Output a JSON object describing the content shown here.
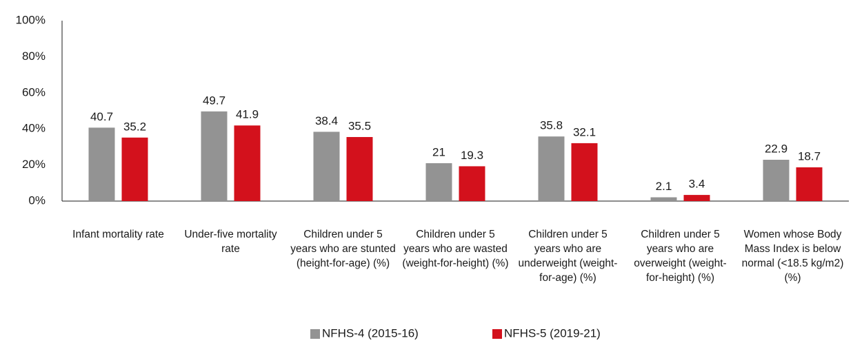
{
  "chart_data": {
    "type": "bar",
    "categories": [
      "Infant mortality rate",
      "Under-five mortality rate",
      "Children under 5 years who are stunted (height-for-age) (%)",
      "Children under 5 years who are wasted (weight-for-height) (%)",
      "Children under 5 years who are underweight (weight-for-age) (%)",
      "Children under 5 years who are overweight (weight-for-height) (%)",
      "Women whose Body Mass Index is below normal (<18.5 kg/m2) (%)"
    ],
    "series": [
      {
        "name": "NFHS-4 (2015-16)",
        "color": "#939393",
        "values": [
          40.7,
          49.7,
          38.4,
          21,
          35.8,
          2.1,
          22.9
        ]
      },
      {
        "name": "NFHS-5 (2019-21)",
        "color": "#d3111c",
        "values": [
          35.2,
          41.9,
          35.5,
          19.3,
          32.1,
          3.4,
          18.7
        ]
      }
    ],
    "ylim": [
      0,
      100
    ],
    "yticks": [
      {
        "value": 0,
        "label": "0%"
      },
      {
        "value": 20,
        "label": "20%"
      },
      {
        "value": 40,
        "label": "40%"
      },
      {
        "value": 60,
        "label": "60%"
      },
      {
        "value": 80,
        "label": "80%"
      },
      {
        "value": 100,
        "label": "100%"
      }
    ],
    "grid": false,
    "legend": "bottom"
  }
}
